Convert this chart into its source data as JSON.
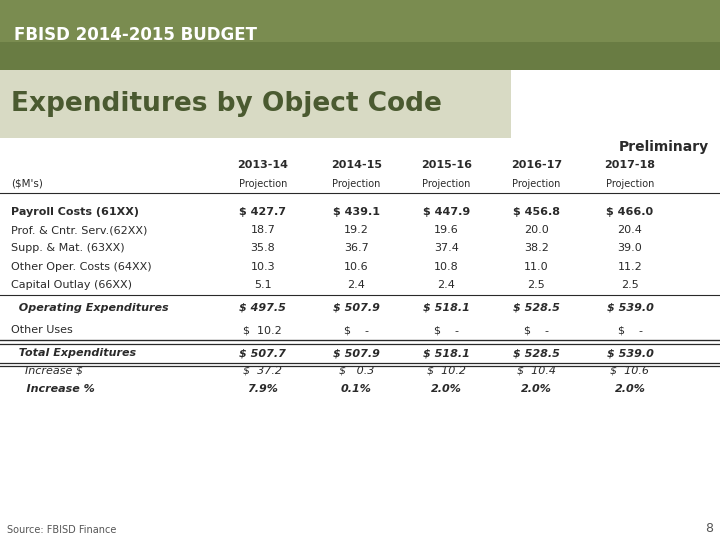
{
  "title": "Expenditures by Object Code",
  "header_banner": "FBISD 2014-2015 BUDGET",
  "preliminary_label": "Preliminary",
  "source_text": "Source: FBISD Finance",
  "page_number": "8",
  "col_headers_year": [
    "2013-14",
    "2014-15",
    "2015-16",
    "2016-17",
    "2017-18"
  ],
  "col_headers_sub": [
    "Projection",
    "Projection",
    "Projection",
    "Projection",
    "Projection"
  ],
  "row_label_header": "($M's)",
  "rows": [
    {
      "label": "Payroll Costs (61XX)",
      "values": [
        "$ 427.7",
        "$ 439.1",
        "$ 447.9",
        "$ 456.8",
        "$ 466.0"
      ],
      "bold": true,
      "italic": false,
      "indent": 0,
      "has_bottom_border": false,
      "double_top": false,
      "double_bottom": false
    },
    {
      "label": "Prof. & Cntr. Serv.(62XX)",
      "values": [
        "18.7",
        "19.2",
        "19.6",
        "20.0",
        "20.4"
      ],
      "bold": false,
      "italic": false,
      "indent": 0,
      "has_bottom_border": false,
      "double_top": false,
      "double_bottom": false
    },
    {
      "label": "Supp. & Mat. (63XX)",
      "values": [
        "35.8",
        "36.7",
        "37.4",
        "38.2",
        "39.0"
      ],
      "bold": false,
      "italic": false,
      "indent": 0,
      "has_bottom_border": false,
      "double_top": false,
      "double_bottom": false
    },
    {
      "label": "Other Oper. Costs (64XX)",
      "values": [
        "10.3",
        "10.6",
        "10.8",
        "11.0",
        "11.2"
      ],
      "bold": false,
      "italic": false,
      "indent": 0,
      "has_bottom_border": false,
      "double_top": false,
      "double_bottom": false
    },
    {
      "label": "Capital Outlay (66XX)",
      "values": [
        "5.1",
        "2.4",
        "2.4",
        "2.5",
        "2.5"
      ],
      "bold": false,
      "italic": false,
      "indent": 0,
      "has_bottom_border": true,
      "double_top": false,
      "double_bottom": false
    },
    {
      "label": "  Operating Expenditures",
      "values": [
        "$ 497.5",
        "$ 507.9",
        "$ 518.1",
        "$ 528.5",
        "$ 539.0"
      ],
      "bold": true,
      "italic": true,
      "indent": 0,
      "has_bottom_border": false,
      "double_top": false,
      "double_bottom": false
    },
    {
      "label": "Other Uses",
      "values": [
        "$  10.2",
        "$    -",
        "$    -",
        "$    -",
        "$    -"
      ],
      "bold": false,
      "italic": false,
      "indent": 0,
      "has_bottom_border": true,
      "double_top": false,
      "double_bottom": false
    },
    {
      "label": "  Total Expenditures",
      "values": [
        "$ 507.7",
        "$ 507.9",
        "$ 518.1",
        "$ 528.5",
        "$ 539.0"
      ],
      "bold": true,
      "italic": true,
      "indent": 0,
      "has_bottom_border": false,
      "double_top": true,
      "double_bottom": true
    },
    {
      "label": "    Increase $",
      "values": [
        "$  37.2",
        "$   0.3",
        "$  10.2",
        "$  10.4",
        "$  10.6"
      ],
      "bold": false,
      "italic": true,
      "indent": 0,
      "has_bottom_border": false,
      "double_top": false,
      "double_bottom": false
    },
    {
      "label": "    Increase %",
      "values": [
        "7.9%",
        "0.1%",
        "2.0%",
        "2.0%",
        "2.0%"
      ],
      "bold": true,
      "italic": true,
      "indent": 0,
      "has_bottom_border": false,
      "double_top": false,
      "double_bottom": false
    }
  ],
  "banner_color": "#7a8c50",
  "title_bg_color": "#d8dac4",
  "title_text_color": "#4a5a30",
  "bg_color": "#ffffff"
}
